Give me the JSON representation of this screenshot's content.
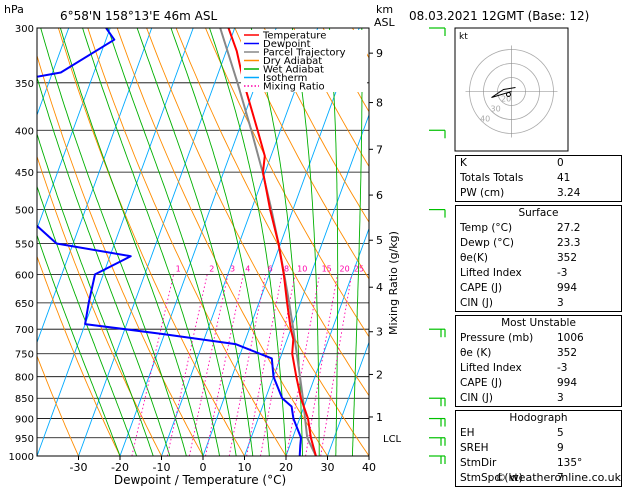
{
  "header": {
    "hpa_unit": "hPa",
    "location": "6°58'N 158°13'E 46m ASL",
    "km_unit": "km",
    "asl_unit": "ASL",
    "datetime": "08.03.2021 12GMT (Base: 12)"
  },
  "legend": {
    "items": [
      {
        "label": "Temperature",
        "color": "#ff0000",
        "style": "solid"
      },
      {
        "label": "Dewpoint",
        "color": "#0000ff",
        "style": "solid"
      },
      {
        "label": "Parcel Trajectory",
        "color": "#888888",
        "style": "solid"
      },
      {
        "label": "Dry Adiabat",
        "color": "#ff8c00",
        "style": "solid"
      },
      {
        "label": "Wet Adiabat",
        "color": "#00b000",
        "style": "solid"
      },
      {
        "label": "Isotherm",
        "color": "#00aaff",
        "style": "solid"
      },
      {
        "label": "Mixing Ratio",
        "color": "#ff00aa",
        "style": "dotted"
      }
    ]
  },
  "chart_data": {
    "type": "skew-t",
    "xlabel": "Dewpoint / Temperature (°C)",
    "ylabel": "hPa",
    "right_label": "Mixing Ratio (g/kg)",
    "pressure_levels": [
      300,
      350,
      400,
      450,
      500,
      550,
      600,
      650,
      700,
      750,
      800,
      850,
      900,
      950,
      1000
    ],
    "temperature_ticks": [
      -30,
      -20,
      -10,
      0,
      10,
      20,
      30,
      40
    ],
    "xlim": [
      -40,
      40
    ],
    "ylim": [
      1000,
      300
    ],
    "km_ticks": [
      {
        "km": "1",
        "p": 896
      },
      {
        "km": "2",
        "p": 795
      },
      {
        "km": "3",
        "p": 705
      },
      {
        "km": "4",
        "p": 622
      },
      {
        "km": "5",
        "p": 545
      },
      {
        "km": "6",
        "p": 480
      },
      {
        "km": "7",
        "p": 422
      },
      {
        "km": "8",
        "p": 370
      },
      {
        "km": "9",
        "p": 322
      }
    ],
    "lcl": {
      "label": "LCL",
      "p": 950
    },
    "mixing_ratios": [
      "1",
      "2",
      "3",
      "4",
      "6",
      "8",
      "10",
      "15",
      "20",
      "25"
    ],
    "temperature_profile": [
      {
        "p": 1000,
        "t": 27.2
      },
      {
        "p": 950,
        "t": 24.4
      },
      {
        "p": 900,
        "t": 22.0
      },
      {
        "p": 850,
        "t": 18.5
      },
      {
        "p": 800,
        "t": 15.5
      },
      {
        "p": 750,
        "t": 12.5
      },
      {
        "p": 720,
        "t": 11.5
      },
      {
        "p": 700,
        "t": 10.0
      },
      {
        "p": 650,
        "t": 6.8
      },
      {
        "p": 600,
        "t": 3.5
      },
      {
        "p": 550,
        "t": -0.5
      },
      {
        "p": 500,
        "t": -5.5
      },
      {
        "p": 450,
        "t": -10.5
      },
      {
        "p": 430,
        "t": -11.5
      },
      {
        "p": 400,
        "t": -15.5
      },
      {
        "p": 350,
        "t": -23.0
      },
      {
        "p": 320,
        "t": -27.5
      },
      {
        "p": 300,
        "t": -31.5
      }
    ],
    "dewpoint_profile": [
      {
        "p": 1000,
        "t": 23.3
      },
      {
        "p": 970,
        "t": 22.5
      },
      {
        "p": 950,
        "t": 22.0
      },
      {
        "p": 900,
        "t": 18.5
      },
      {
        "p": 870,
        "t": 17.0
      },
      {
        "p": 850,
        "t": 14.0
      },
      {
        "p": 800,
        "t": 10.0
      },
      {
        "p": 760,
        "t": 8.0
      },
      {
        "p": 730,
        "t": -2.0
      },
      {
        "p": 710,
        "t": -20.0
      },
      {
        "p": 690,
        "t": -40.0
      },
      {
        "p": 650,
        "t": -41.0
      },
      {
        "p": 600,
        "t": -42.0
      },
      {
        "p": 570,
        "t": -35.0
      },
      {
        "p": 550,
        "t": -54.0
      },
      {
        "p": 500,
        "t": -66.0
      },
      {
        "p": 470,
        "t": -69.0
      },
      {
        "p": 450,
        "t": -70.0
      },
      {
        "p": 400,
        "t": -75.0
      },
      {
        "p": 350,
        "t": -81.0
      },
      {
        "p": 340,
        "t": -68.0
      },
      {
        "p": 310,
        "t": -58.0
      },
      {
        "p": 300,
        "t": -61.0
      }
    ],
    "parcel_profile": [
      {
        "p": 1000,
        "t": 27.2
      },
      {
        "p": 950,
        "t": 23.5
      },
      {
        "p": 900,
        "t": 21.3
      },
      {
        "p": 850,
        "t": 19.0
      },
      {
        "p": 800,
        "t": 16.4
      },
      {
        "p": 750,
        "t": 13.6
      },
      {
        "p": 700,
        "t": 10.6
      },
      {
        "p": 650,
        "t": 7.3
      },
      {
        "p": 600,
        "t": 3.6
      },
      {
        "p": 550,
        "t": -0.5
      },
      {
        "p": 500,
        "t": -5.2
      },
      {
        "p": 450,
        "t": -10.6
      },
      {
        "p": 400,
        "t": -17.0
      },
      {
        "p": 350,
        "t": -24.5
      },
      {
        "p": 300,
        "t": -33.5
      }
    ]
  },
  "hodograph": {
    "label": "kt",
    "ring_labels": [
      "40",
      "30",
      "20"
    ]
  },
  "indices": {
    "k": {
      "label": "K",
      "value": "0"
    },
    "totals": {
      "label": "Totals Totals",
      "value": "41"
    },
    "pw": {
      "label": "PW (cm)",
      "value": "3.24"
    }
  },
  "surface": {
    "title": "Surface",
    "rows": [
      {
        "label": "Temp (°C)",
        "value": "27.2"
      },
      {
        "label": "Dewp (°C)",
        "value": "23.3"
      },
      {
        "label": "θe(K)",
        "value": "352"
      },
      {
        "label": "Lifted Index",
        "value": "-3"
      },
      {
        "label": "CAPE (J)",
        "value": "994"
      },
      {
        "label": "CIN (J)",
        "value": "3"
      }
    ]
  },
  "most_unstable": {
    "title": "Most Unstable",
    "rows": [
      {
        "label": "Pressure (mb)",
        "value": "1006"
      },
      {
        "label": "θe (K)",
        "value": "352"
      },
      {
        "label": "Lifted Index",
        "value": "-3"
      },
      {
        "label": "CAPE (J)",
        "value": "994"
      },
      {
        "label": "CIN (J)",
        "value": "3"
      }
    ]
  },
  "hodograph_table": {
    "title": "Hodograph",
    "rows": [
      {
        "label": "EH",
        "value": "5"
      },
      {
        "label": "SREH",
        "value": "9"
      },
      {
        "label": "StmDir",
        "value": "135°"
      },
      {
        "label": "StmSpd (kt)",
        "value": "7"
      }
    ]
  },
  "footer": {
    "copyright": "© weatheronline.co.uk"
  },
  "colors": {
    "temperature": "#ff0000",
    "dewpoint": "#0000ff",
    "parcel": "#888888",
    "dry": "#ff8c00",
    "wet": "#00b000",
    "isotherm": "#00aaff",
    "mixing": "#ff00aa",
    "wind": "#00c000"
  }
}
